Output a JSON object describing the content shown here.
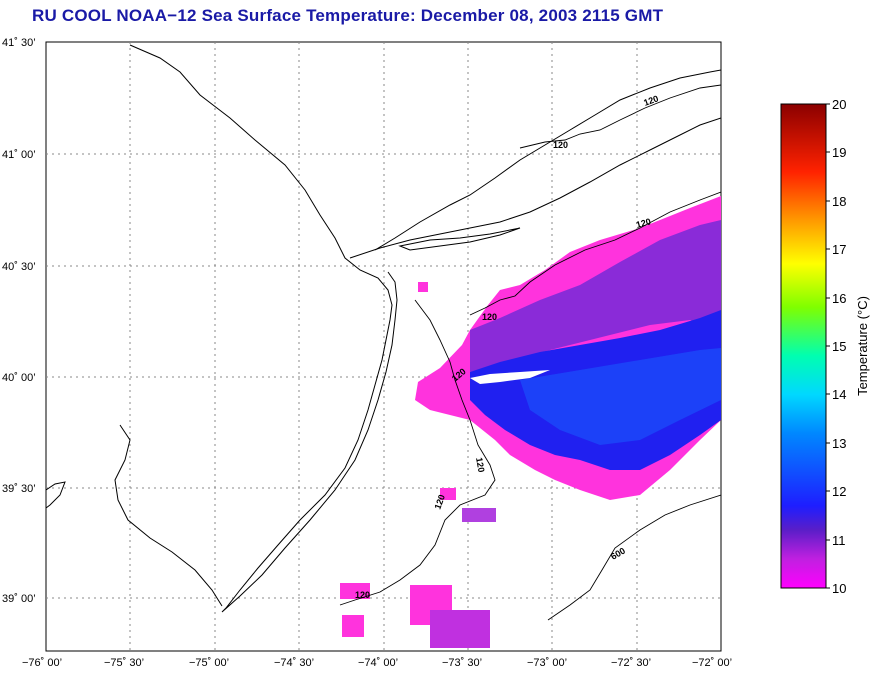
{
  "title": "RU COOL  NOAA−12  Sea Surface Temperature:  December 08, 2003 2115 GMT",
  "lat_ticks": [
    "41˚ 30’",
    "41˚ 00’",
    "40˚ 30’",
    "40˚ 00’",
    "39˚ 30’",
    "39˚ 00’"
  ],
  "lon_ticks": [
    "−76˚ 00’",
    "−75˚ 30’",
    "−75˚ 00’",
    "−74˚ 30’",
    "−74˚ 00’",
    "−73˚ 30’",
    "−73˚ 00’",
    "−72˚ 30’",
    "−72˚ 00’"
  ],
  "colorbar": {
    "title": "Temperature (°C)",
    "min": 10,
    "max": 20,
    "ticks": [
      "20",
      "19",
      "18",
      "17",
      "16",
      "15",
      "14",
      "13",
      "12",
      "11",
      "10"
    ],
    "colors": [
      "#ff00ff",
      "#1e1eff",
      "#00b4ff",
      "#00ffcc",
      "#7fff00",
      "#ffff00",
      "#ff9900",
      "#ff2200",
      "#8b0000"
    ]
  },
  "contour_labels": [
    "120",
    "120",
    "120",
    "120",
    "120",
    "120",
    "120",
    "600"
  ]
}
